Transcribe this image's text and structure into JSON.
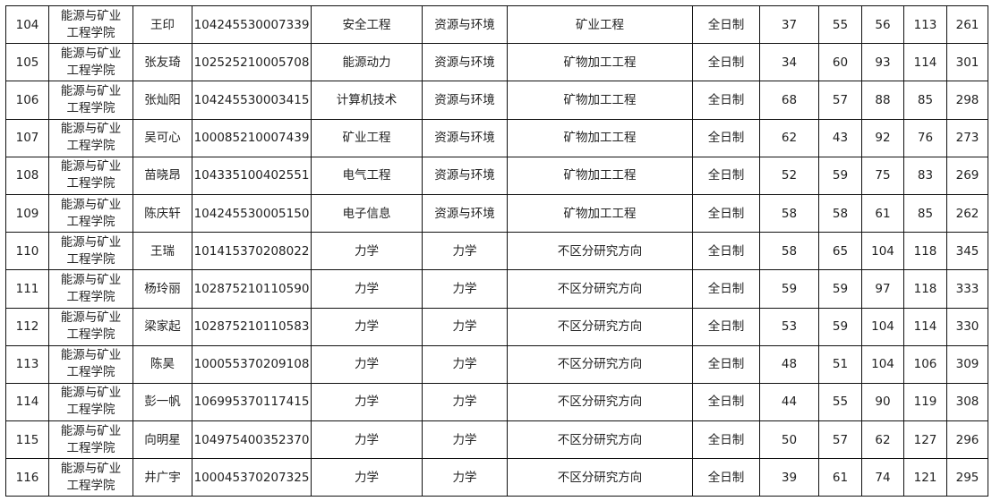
{
  "table": {
    "rows": [
      {
        "no": "104",
        "college": [
          "能源与矿业",
          "工程学院"
        ],
        "name": "王印",
        "exam_id": "104245530007339",
        "undergrad_major": "安全工程",
        "field": "资源与环境",
        "direction": "矿业工程",
        "mode": "全日制",
        "s1": "37",
        "s2": "55",
        "s3": "56",
        "s4": "113",
        "total": "261"
      },
      {
        "no": "105",
        "college": [
          "能源与矿业",
          "工程学院"
        ],
        "name": "张友琦",
        "exam_id": "102525210005708",
        "undergrad_major": "能源动力",
        "field": "资源与环境",
        "direction": "矿物加工工程",
        "mode": "全日制",
        "s1": "34",
        "s2": "60",
        "s3": "93",
        "s4": "114",
        "total": "301"
      },
      {
        "no": "106",
        "college": [
          "能源与矿业",
          "工程学院"
        ],
        "name": "张灿阳",
        "exam_id": "104245530003415",
        "undergrad_major": "计算机技术",
        "field": "资源与环境",
        "direction": "矿物加工工程",
        "mode": "全日制",
        "s1": "68",
        "s2": "57",
        "s3": "88",
        "s4": "85",
        "total": "298"
      },
      {
        "no": "107",
        "college": [
          "能源与矿业",
          "工程学院"
        ],
        "name": "吴可心",
        "exam_id": "100085210007439",
        "undergrad_major": "矿业工程",
        "field": "资源与环境",
        "direction": "矿物加工工程",
        "mode": "全日制",
        "s1": "62",
        "s2": "43",
        "s3": "92",
        "s4": "76",
        "total": "273"
      },
      {
        "no": "108",
        "college": [
          "能源与矿业",
          "工程学院"
        ],
        "name": "苗晓昂",
        "exam_id": "104335100402551",
        "undergrad_major": "电气工程",
        "field": "资源与环境",
        "direction": "矿物加工工程",
        "mode": "全日制",
        "s1": "52",
        "s2": "59",
        "s3": "75",
        "s4": "83",
        "total": "269"
      },
      {
        "no": "109",
        "college": [
          "能源与矿业",
          "工程学院"
        ],
        "name": "陈庆轩",
        "exam_id": "104245530005150",
        "undergrad_major": "电子信息",
        "field": "资源与环境",
        "direction": "矿物加工工程",
        "mode": "全日制",
        "s1": "58",
        "s2": "58",
        "s3": "61",
        "s4": "85",
        "total": "262"
      },
      {
        "no": "110",
        "college": [
          "能源与矿业",
          "工程学院"
        ],
        "name": "王瑞",
        "exam_id": "101415370208022",
        "undergrad_major": "力学",
        "field": "力学",
        "direction": "不区分研究方向",
        "mode": "全日制",
        "s1": "58",
        "s2": "65",
        "s3": "104",
        "s4": "118",
        "total": "345"
      },
      {
        "no": "111",
        "college": [
          "能源与矿业",
          "工程学院"
        ],
        "name": "杨玲丽",
        "exam_id": "102875210110590",
        "undergrad_major": "力学",
        "field": "力学",
        "direction": "不区分研究方向",
        "mode": "全日制",
        "s1": "59",
        "s2": "59",
        "s3": "97",
        "s4": "118",
        "total": "333"
      },
      {
        "no": "112",
        "college": [
          "能源与矿业",
          "工程学院"
        ],
        "name": "梁家起",
        "exam_id": "102875210110583",
        "undergrad_major": "力学",
        "field": "力学",
        "direction": "不区分研究方向",
        "mode": "全日制",
        "s1": "53",
        "s2": "59",
        "s3": "104",
        "s4": "114",
        "total": "330"
      },
      {
        "no": "113",
        "college": [
          "能源与矿业",
          "工程学院"
        ],
        "name": "陈昊",
        "exam_id": "100055370209108",
        "undergrad_major": "力学",
        "field": "力学",
        "direction": "不区分研究方向",
        "mode": "全日制",
        "s1": "48",
        "s2": "51",
        "s3": "104",
        "s4": "106",
        "total": "309"
      },
      {
        "no": "114",
        "college": [
          "能源与矿业",
          "工程学院"
        ],
        "name": "彭一帆",
        "exam_id": "106995370117415",
        "undergrad_major": "力学",
        "field": "力学",
        "direction": "不区分研究方向",
        "mode": "全日制",
        "s1": "44",
        "s2": "55",
        "s3": "90",
        "s4": "119",
        "total": "308"
      },
      {
        "no": "115",
        "college": [
          "能源与矿业",
          "工程学院"
        ],
        "name": "向明星",
        "exam_id": "104975400352370",
        "undergrad_major": "力学",
        "field": "力学",
        "direction": "不区分研究方向",
        "mode": "全日制",
        "s1": "50",
        "s2": "57",
        "s3": "62",
        "s4": "127",
        "total": "296"
      },
      {
        "no": "116",
        "college": [
          "能源与矿业",
          "工程学院"
        ],
        "name": "井广宇",
        "exam_id": "100045370207325",
        "undergrad_major": "力学",
        "field": "力学",
        "direction": "不区分研究方向",
        "mode": "全日制",
        "s1": "39",
        "s2": "61",
        "s3": "74",
        "s4": "121",
        "total": "295"
      }
    ]
  }
}
